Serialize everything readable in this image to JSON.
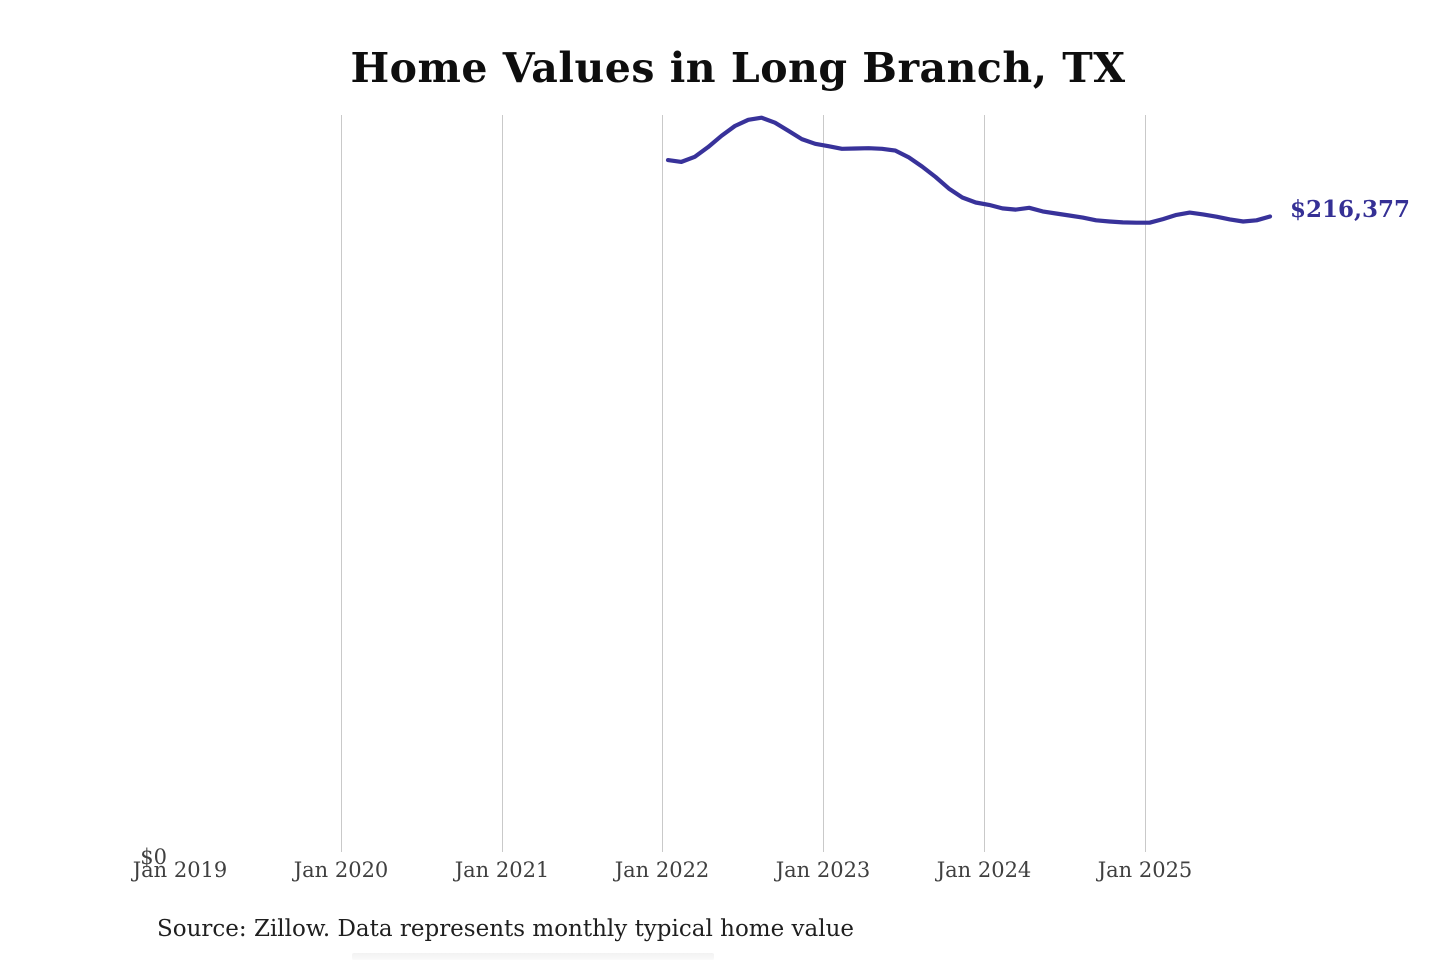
{
  "header": {
    "title": "Home Values in Long Branch, TX"
  },
  "chart_data": {
    "type": "line",
    "title": "Home Values in Long Branch, TX",
    "xlabel": "",
    "ylabel": "",
    "ylim": [
      0,
      260000
    ],
    "grid": "vertical-only",
    "legend": "none",
    "x_ticks": [
      "Jan 2019",
      "Jan 2020",
      "Jan 2021",
      "Jan 2022",
      "Jan 2023",
      "Jan 2024",
      "Jan 2025"
    ],
    "y_zero_label": "$0",
    "end_value_label": "$216,377",
    "end_value": 216377,
    "series": [
      {
        "name": "Monthly typical home value",
        "color": "#38329a",
        "x": [
          "2022-01",
          "2022-02",
          "2022-03",
          "2022-04",
          "2022-05",
          "2022-06",
          "2022-07",
          "2022-08",
          "2022-09",
          "2022-10",
          "2022-11",
          "2022-12",
          "2023-01",
          "2023-02",
          "2023-03",
          "2023-04",
          "2023-05",
          "2023-06",
          "2023-07",
          "2023-08",
          "2023-09",
          "2023-10",
          "2023-11",
          "2023-12",
          "2024-01",
          "2024-02",
          "2024-03",
          "2024-04",
          "2024-05",
          "2024-06",
          "2024-07",
          "2024-08",
          "2024-09",
          "2024-10",
          "2024-11",
          "2024-12",
          "2025-01",
          "2025-02",
          "2025-03",
          "2025-04",
          "2025-05",
          "2025-06",
          "2025-07",
          "2025-08",
          "2025-09",
          "2025-10"
        ],
        "values": [
          235400,
          234800,
          236500,
          239800,
          243600,
          246900,
          249000,
          249700,
          248000,
          245300,
          242500,
          240900,
          240100,
          239200,
          239300,
          239400,
          239200,
          238600,
          236300,
          233200,
          229700,
          225800,
          222800,
          221100,
          220300,
          219100,
          218700,
          219300,
          218100,
          217400,
          216700,
          216000,
          215100,
          214700,
          214400,
          214300,
          214300,
          215500,
          216900,
          217700,
          217100,
          216300,
          215400,
          214700,
          215100,
          216377
        ]
      }
    ]
  },
  "footer": {
    "source_note": "Source: Zillow. Data represents monthly typical home value"
  },
  "colors": {
    "line": "#38329a",
    "end_label": "#353095",
    "grid": "#c9c9c9",
    "title": "#0e0e0e",
    "tick": "#404040",
    "source": "#1f1f1f"
  }
}
